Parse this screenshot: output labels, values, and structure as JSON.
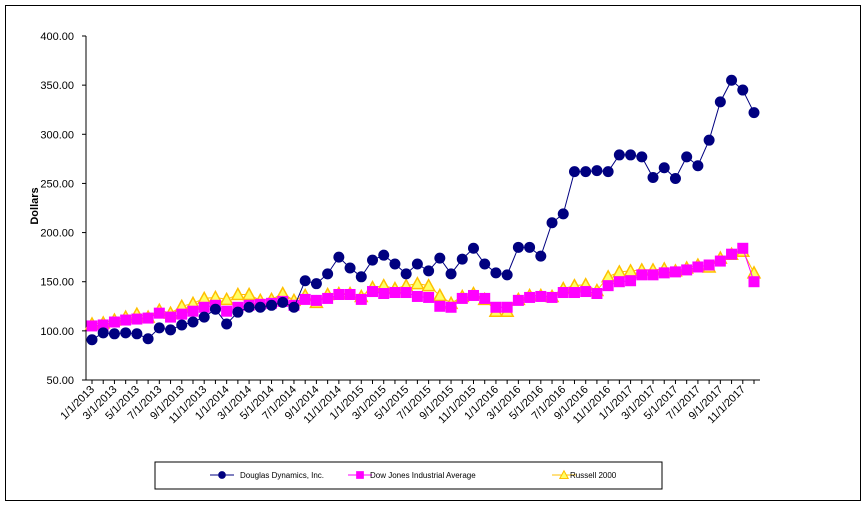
{
  "chart_data": {
    "type": "line",
    "ylabel": "Dollars",
    "xlabel": "",
    "ylim": [
      50,
      400
    ],
    "yticks": [
      "400.00",
      "350.00",
      "300.00",
      "250.00",
      "200.00",
      "150.00",
      "100.00",
      "50.00"
    ],
    "x": [
      "1/1/2013",
      "2/1/2013",
      "3/1/2013",
      "4/1/2013",
      "5/1/2013",
      "6/1/2013",
      "7/1/2013",
      "8/1/2013",
      "9/1/2013",
      "10/1/2013",
      "11/1/2013",
      "12/1/2013",
      "1/1/2014",
      "2/1/2014",
      "3/1/2014",
      "4/1/2014",
      "5/1/2014",
      "6/1/2014",
      "7/1/2014",
      "8/1/2014",
      "9/1/2014",
      "10/1/2014",
      "11/1/2014",
      "12/1/2014",
      "1/1/2015",
      "2/1/2015",
      "3/1/2015",
      "4/1/2015",
      "5/1/2015",
      "6/1/2015",
      "7/1/2015",
      "8/1/2015",
      "9/1/2015",
      "10/1/2015",
      "11/1/2015",
      "12/1/2015",
      "1/1/2016",
      "2/1/2016",
      "3/1/2016",
      "4/1/2016",
      "5/1/2016",
      "6/1/2016",
      "7/1/2016",
      "8/1/2016",
      "9/1/2016",
      "10/1/2016",
      "11/1/2016",
      "12/1/2016",
      "1/1/2017",
      "2/1/2017",
      "3/1/2017",
      "4/1/2017",
      "5/1/2017",
      "6/1/2017",
      "7/1/2017",
      "8/1/2017",
      "9/1/2017",
      "10/1/2017",
      "11/1/2017",
      "12/1/2017"
    ],
    "xtick_labels": [
      "1/1/2013",
      "3/1/2013",
      "5/1/2013",
      "7/1/2013",
      "9/1/2013",
      "11/1/2013",
      "1/1/2014",
      "3/1/2014",
      "5/1/2014",
      "7/1/2014",
      "9/1/2014",
      "11/1/2014",
      "1/1/2015",
      "3/1/2015",
      "5/1/2015",
      "7/1/2015",
      "9/1/2015",
      "11/1/2015",
      "1/1/2016",
      "3/1/2016",
      "5/1/2016",
      "7/1/2016",
      "9/1/2016",
      "11/1/2016",
      "1/1/2017",
      "3/1/2017",
      "5/1/2017",
      "7/1/2017",
      "9/1/2017",
      "11/1/2017"
    ],
    "series": [
      {
        "name": "Douglas Dynamics, Inc.",
        "color": "#000080",
        "marker": "circle",
        "values": [
          91,
          98,
          97,
          98,
          97,
          92,
          103,
          101,
          106,
          109,
          114,
          122,
          107,
          119,
          124,
          124,
          126,
          129,
          124,
          151,
          148,
          158,
          175,
          164,
          155,
          172,
          177,
          168,
          158,
          168,
          161,
          174,
          158,
          173,
          184,
          168,
          159,
          157,
          185,
          185,
          176,
          210,
          219,
          262,
          262,
          263,
          262,
          279,
          279,
          277,
          256,
          266,
          255,
          277,
          268,
          294,
          333,
          355,
          345,
          322
        ]
      },
      {
        "name": "Dow Jones Industrial Average",
        "color": "#FF00FF",
        "marker": "square",
        "values": [
          105,
          106,
          109,
          111,
          112,
          113,
          118,
          114,
          117,
          120,
          124,
          126,
          120,
          124,
          126,
          127,
          128,
          130,
          126,
          132,
          131,
          133,
          137,
          137,
          132,
          140,
          138,
          139,
          139,
          135,
          134,
          125,
          124,
          133,
          136,
          133,
          124,
          124,
          131,
          134,
          135,
          134,
          139,
          139,
          140,
          138,
          146,
          150,
          151,
          157,
          157,
          159,
          160,
          162,
          165,
          167,
          171,
          178,
          184,
          150
        ]
      },
      {
        "name": "Russell 2000",
        "color": "#FFC000",
        "marker": "triangle",
        "values": [
          107,
          108,
          111,
          114,
          117,
          114,
          121,
          118,
          125,
          128,
          133,
          134,
          132,
          137,
          137,
          131,
          132,
          138,
          131,
          136,
          129,
          137,
          138,
          138,
          135,
          144,
          146,
          143,
          146,
          148,
          146,
          136,
          128,
          135,
          138,
          132,
          120,
          120,
          132,
          136,
          136,
          135,
          143,
          146,
          147,
          141,
          155,
          160,
          161,
          162,
          162,
          163,
          161,
          164,
          167,
          165,
          174,
          178,
          181,
          159
        ]
      }
    ],
    "legend": "bottom"
  }
}
